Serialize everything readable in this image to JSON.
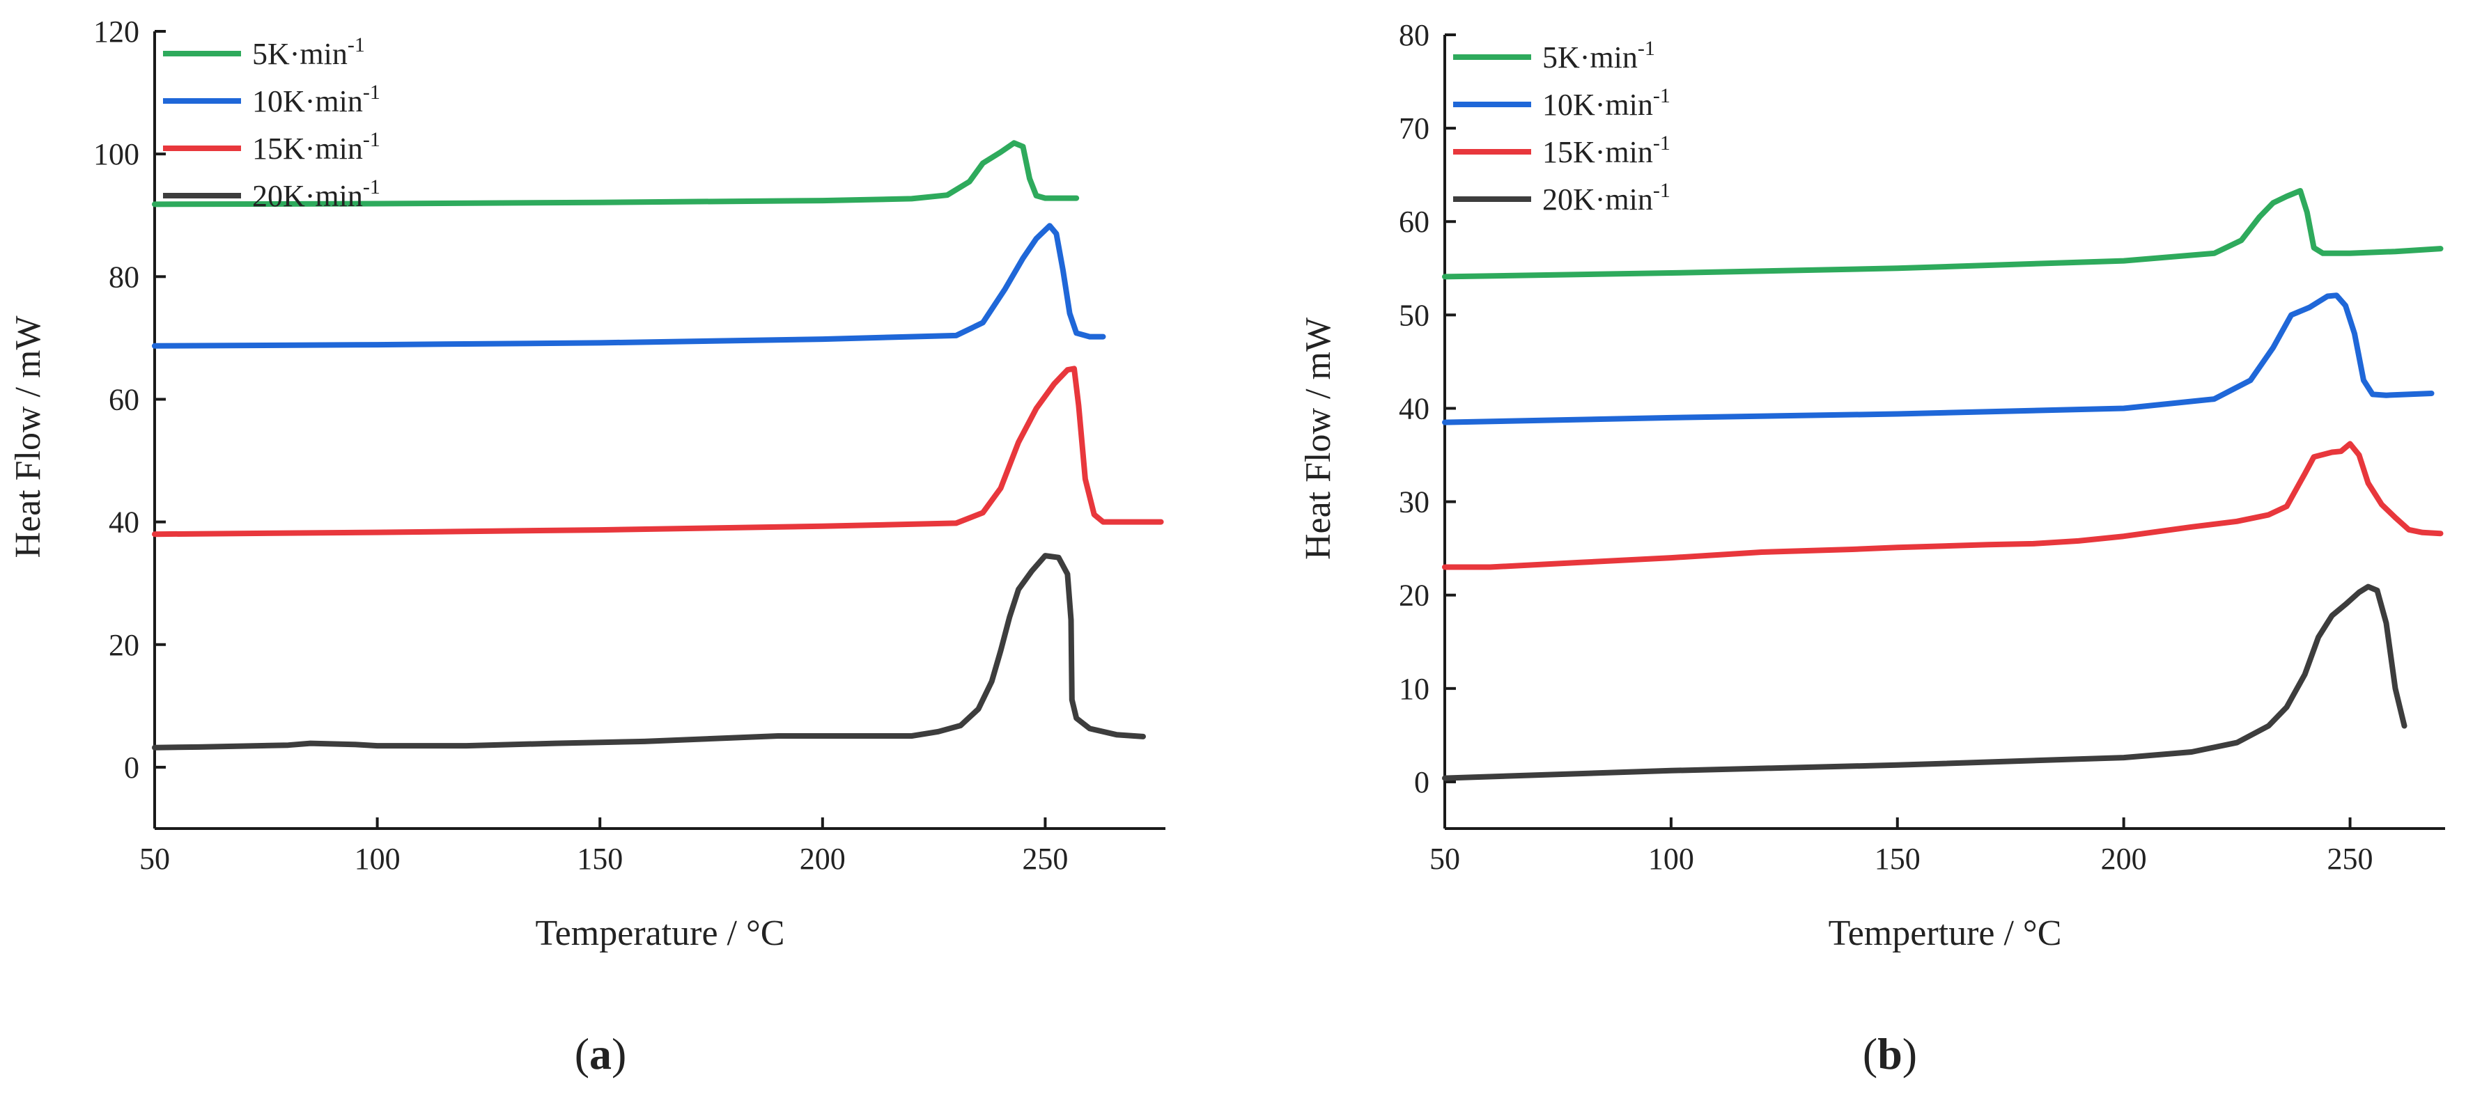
{
  "figure": {
    "panels": [
      "(a)",
      "(b)"
    ]
  },
  "chart_data": [
    {
      "type": "line",
      "panel_label": "(a)",
      "panel_letter": "a",
      "title": "",
      "xlabel": "Temperature / °C",
      "ylabel": "Heat Flow / mW",
      "xlim": [
        50,
        277
      ],
      "ylim": [
        -10,
        120
      ],
      "xticks": [
        50,
        100,
        150,
        200,
        250
      ],
      "yticks": [
        0,
        20,
        40,
        60,
        80,
        100,
        120
      ],
      "grid": false,
      "legend_position": "top-left",
      "series": [
        {
          "name": "5K·min",
          "superscript": "-1",
          "color": "#2eaa5c",
          "points": [
            [
              50,
              91.8
            ],
            [
              100,
              91.9
            ],
            [
              150,
              92.1
            ],
            [
              200,
              92.4
            ],
            [
              220,
              92.7
            ],
            [
              228,
              93.3
            ],
            [
              233,
              95.5
            ],
            [
              236,
              98.5
            ],
            [
              240,
              100.3
            ],
            [
              243,
              101.8
            ],
            [
              245,
              101.2
            ],
            [
              246.5,
              96.0
            ],
            [
              248,
              93.2
            ],
            [
              250,
              92.8
            ],
            [
              257,
              92.8
            ]
          ]
        },
        {
          "name": "10K·min",
          "superscript": "-1",
          "color": "#1f67d8",
          "points": [
            [
              50,
              68.7
            ],
            [
              100,
              68.9
            ],
            [
              150,
              69.2
            ],
            [
              200,
              69.8
            ],
            [
              230,
              70.4
            ],
            [
              236,
              72.5
            ],
            [
              241,
              78.0
            ],
            [
              245,
              83.0
            ],
            [
              248,
              86.2
            ],
            [
              251,
              88.3
            ],
            [
              252.5,
              87.0
            ],
            [
              254,
              81.0
            ],
            [
              255.5,
              74.0
            ],
            [
              257,
              70.8
            ],
            [
              260,
              70.2
            ],
            [
              263,
              70.2
            ]
          ]
        },
        {
          "name": "15K·min",
          "superscript": "-1",
          "color": "#e8373c",
          "points": [
            [
              50,
              38.0
            ],
            [
              100,
              38.3
            ],
            [
              150,
              38.7
            ],
            [
              200,
              39.3
            ],
            [
              230,
              39.8
            ],
            [
              236,
              41.5
            ],
            [
              240,
              45.5
            ],
            [
              244,
              53.0
            ],
            [
              248,
              58.5
            ],
            [
              252,
              62.5
            ],
            [
              255,
              64.8
            ],
            [
              256.5,
              65.0
            ],
            [
              257.5,
              59.0
            ],
            [
              259,
              47.0
            ],
            [
              261,
              41.2
            ],
            [
              263,
              40.0
            ],
            [
              276,
              40.0
            ]
          ]
        },
        {
          "name": "20K·min",
          "superscript": "-1",
          "color": "#3d3d3d",
          "points": [
            [
              50,
              3.2
            ],
            [
              60,
              3.3
            ],
            [
              80,
              3.6
            ],
            [
              85,
              3.9
            ],
            [
              95,
              3.7
            ],
            [
              100,
              3.5
            ],
            [
              120,
              3.5
            ],
            [
              140,
              3.9
            ],
            [
              160,
              4.2
            ],
            [
              180,
              4.8
            ],
            [
              190,
              5.1
            ],
            [
              220,
              5.1
            ],
            [
              226,
              5.8
            ],
            [
              231,
              6.8
            ],
            [
              235,
              9.5
            ],
            [
              238,
              14.0
            ],
            [
              240,
              19.0
            ],
            [
              242,
              24.5
            ],
            [
              244,
              29.0
            ],
            [
              247,
              32.0
            ],
            [
              250,
              34.5
            ],
            [
              253,
              34.2
            ],
            [
              255,
              31.5
            ],
            [
              255.8,
              24.0
            ],
            [
              256,
              11.0
            ],
            [
              257,
              8.0
            ],
            [
              260,
              6.3
            ],
            [
              266,
              5.3
            ],
            [
              272,
              5.0
            ]
          ]
        }
      ]
    },
    {
      "type": "line",
      "panel_label": "(b)",
      "panel_letter": "b",
      "title": "",
      "xlabel": "Temperture / °C",
      "ylabel": "Heat Flow / mW",
      "xlim": [
        50,
        271
      ],
      "ylim": [
        -5,
        80
      ],
      "xticks": [
        50,
        100,
        150,
        200,
        250
      ],
      "yticks": [
        0,
        10,
        20,
        30,
        40,
        50,
        60,
        70,
        80
      ],
      "grid": false,
      "legend_position": "top-left",
      "series": [
        {
          "name": "5K·min",
          "superscript": "-1",
          "color": "#2eaa5c",
          "points": [
            [
              50,
              54.1
            ],
            [
              100,
              54.5
            ],
            [
              150,
              55.0
            ],
            [
              200,
              55.8
            ],
            [
              220,
              56.6
            ],
            [
              226,
              58.0
            ],
            [
              230,
              60.5
            ],
            [
              233,
              62.0
            ],
            [
              236,
              62.7
            ],
            [
              239,
              63.3
            ],
            [
              240.5,
              61.0
            ],
            [
              242,
              57.2
            ],
            [
              244,
              56.6
            ],
            [
              250,
              56.6
            ],
            [
              260,
              56.8
            ],
            [
              270,
              57.1
            ]
          ]
        },
        {
          "name": "10K·min",
          "superscript": "-1",
          "color": "#1f67d8",
          "points": [
            [
              50,
              38.5
            ],
            [
              100,
              39.0
            ],
            [
              150,
              39.4
            ],
            [
              200,
              40.0
            ],
            [
              220,
              41.0
            ],
            [
              228,
              43.0
            ],
            [
              233,
              46.5
            ],
            [
              237,
              50.0
            ],
            [
              241,
              50.8
            ],
            [
              245,
              52.0
            ],
            [
              247,
              52.1
            ],
            [
              249,
              51.0
            ],
            [
              251,
              48.0
            ],
            [
              253,
              43.0
            ],
            [
              255,
              41.5
            ],
            [
              258,
              41.4
            ],
            [
              268,
              41.6
            ]
          ]
        },
        {
          "name": "15K·min",
          "superscript": "-1",
          "color": "#e8373c",
          "points": [
            [
              50,
              23.0
            ],
            [
              60,
              23.0
            ],
            [
              80,
              23.5
            ],
            [
              100,
              24.0
            ],
            [
              120,
              24.6
            ],
            [
              140,
              24.9
            ],
            [
              150,
              25.1
            ],
            [
              170,
              25.4
            ],
            [
              180,
              25.5
            ],
            [
              190,
              25.8
            ],
            [
              200,
              26.3
            ],
            [
              215,
              27.3
            ],
            [
              225,
              27.9
            ],
            [
              232,
              28.6
            ],
            [
              236,
              29.5
            ],
            [
              240,
              33.0
            ],
            [
              242,
              34.8
            ],
            [
              246,
              35.3
            ],
            [
              248,
              35.4
            ],
            [
              250,
              36.2
            ],
            [
              252,
              35.0
            ],
            [
              254,
              32.0
            ],
            [
              257,
              29.7
            ],
            [
              260,
              28.3
            ],
            [
              263,
              27.0
            ],
            [
              266,
              26.7
            ],
            [
              270,
              26.6
            ]
          ]
        },
        {
          "name": "20K·min",
          "superscript": "-1",
          "color": "#3d3d3d",
          "points": [
            [
              50,
              0.4
            ],
            [
              100,
              1.2
            ],
            [
              150,
              1.8
            ],
            [
              200,
              2.6
            ],
            [
              215,
              3.2
            ],
            [
              225,
              4.2
            ],
            [
              232,
              6.0
            ],
            [
              236,
              8.0
            ],
            [
              240,
              11.5
            ],
            [
              243,
              15.5
            ],
            [
              246,
              17.8
            ],
            [
              249,
              19.0
            ],
            [
              252,
              20.3
            ],
            [
              254,
              20.9
            ],
            [
              256,
              20.5
            ],
            [
              258,
              17.0
            ],
            [
              260,
              10.0
            ],
            [
              262,
              6.0
            ]
          ]
        }
      ]
    }
  ]
}
